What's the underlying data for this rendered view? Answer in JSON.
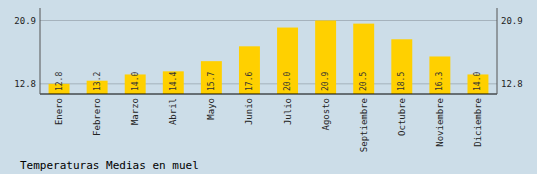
{
  "chart_data": {
    "type": "bar",
    "title": "Temperaturas Medias en muel",
    "categories": [
      "Enero",
      "Febrero",
      "Marzo",
      "Abril",
      "Mayo",
      "Junio",
      "Julio",
      "Agosto",
      "Septiembre",
      "Octubre",
      "Noviembre",
      "Diciembre"
    ],
    "values": [
      12.8,
      13.2,
      14.0,
      14.4,
      15.7,
      17.6,
      20.0,
      20.9,
      20.5,
      18.5,
      16.3,
      14.0
    ],
    "value_labels": [
      "12.8",
      "13.2",
      "14.0",
      "14.4",
      "15.7",
      "17.6",
      "20.0",
      "20.9",
      "20.5",
      "18.5",
      "16.3",
      "14.0"
    ],
    "color": "#FFD000",
    "ylim": [
      11.5,
      22.5
    ],
    "yticks": [
      12.8,
      20.9
    ],
    "grid": true,
    "data_labels": true
  }
}
